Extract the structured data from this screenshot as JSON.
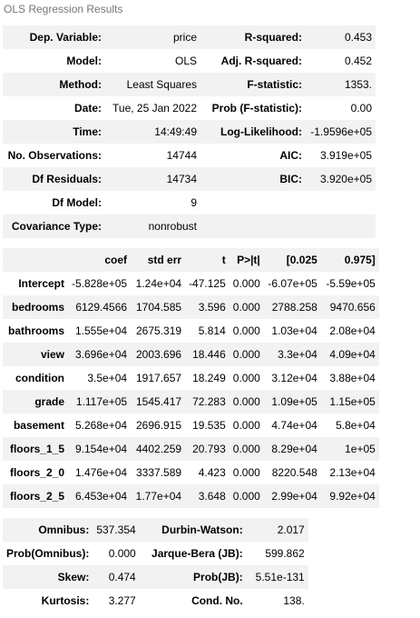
{
  "title": "OLS Regression Results",
  "summary": [
    [
      "Dep. Variable:",
      "price",
      "R-squared:",
      "0.453"
    ],
    [
      "Model:",
      "OLS",
      "Adj. R-squared:",
      "0.452"
    ],
    [
      "Method:",
      "Least Squares",
      "F-statistic:",
      "1353."
    ],
    [
      "Date:",
      "Tue, 25 Jan 2022",
      "Prob (F-statistic):",
      "0.00"
    ],
    [
      "Time:",
      "14:49:49",
      "Log-Likelihood:",
      "-1.9596e+05"
    ],
    [
      "No. Observations:",
      "14744",
      "AIC:",
      "3.919e+05"
    ],
    [
      "Df Residuals:",
      "14734",
      "BIC:",
      "3.920e+05"
    ],
    [
      "Df Model:",
      "9",
      "",
      ""
    ],
    [
      "Covariance Type:",
      "nonrobust",
      "",
      ""
    ]
  ],
  "coef_header": [
    "",
    "coef",
    "std err",
    "t",
    "P>|t|",
    "[0.025",
    "0.975]"
  ],
  "coef_rows": [
    [
      "Intercept",
      "-5.828e+05",
      "1.24e+04",
      "-47.125",
      "0.000",
      "-6.07e+05",
      "-5.59e+05"
    ],
    [
      "bedrooms",
      "6129.4566",
      "1704.585",
      "3.596",
      "0.000",
      "2788.258",
      "9470.656"
    ],
    [
      "bathrooms",
      "1.555e+04",
      "2675.319",
      "5.814",
      "0.000",
      "1.03e+04",
      "2.08e+04"
    ],
    [
      "view",
      "3.696e+04",
      "2003.696",
      "18.446",
      "0.000",
      "3.3e+04",
      "4.09e+04"
    ],
    [
      "condition",
      "3.5e+04",
      "1917.657",
      "18.249",
      "0.000",
      "3.12e+04",
      "3.88e+04"
    ],
    [
      "grade",
      "1.117e+05",
      "1545.417",
      "72.283",
      "0.000",
      "1.09e+05",
      "1.15e+05"
    ],
    [
      "basement",
      "5.268e+04",
      "2696.915",
      "19.535",
      "0.000",
      "4.74e+04",
      "5.8e+04"
    ],
    [
      "floors_1_5",
      "9.154e+04",
      "4402.259",
      "20.793",
      "0.000",
      "8.29e+04",
      "1e+05"
    ],
    [
      "floors_2_0",
      "1.476e+04",
      "3337.589",
      "4.423",
      "0.000",
      "8220.548",
      "2.13e+04"
    ],
    [
      "floors_2_5",
      "6.453e+04",
      "1.77e+04",
      "3.648",
      "0.000",
      "2.99e+04",
      "9.92e+04"
    ]
  ],
  "diagnostics": [
    [
      "Omnibus:",
      "537.354",
      "Durbin-Watson:",
      "2.017"
    ],
    [
      "Prob(Omnibus):",
      "0.000",
      "Jarque-Bera (JB):",
      "599.862"
    ],
    [
      "Skew:",
      "0.474",
      "Prob(JB):",
      "5.51e-131"
    ],
    [
      "Kurtosis:",
      "3.277",
      "Cond. No.",
      "138."
    ]
  ]
}
